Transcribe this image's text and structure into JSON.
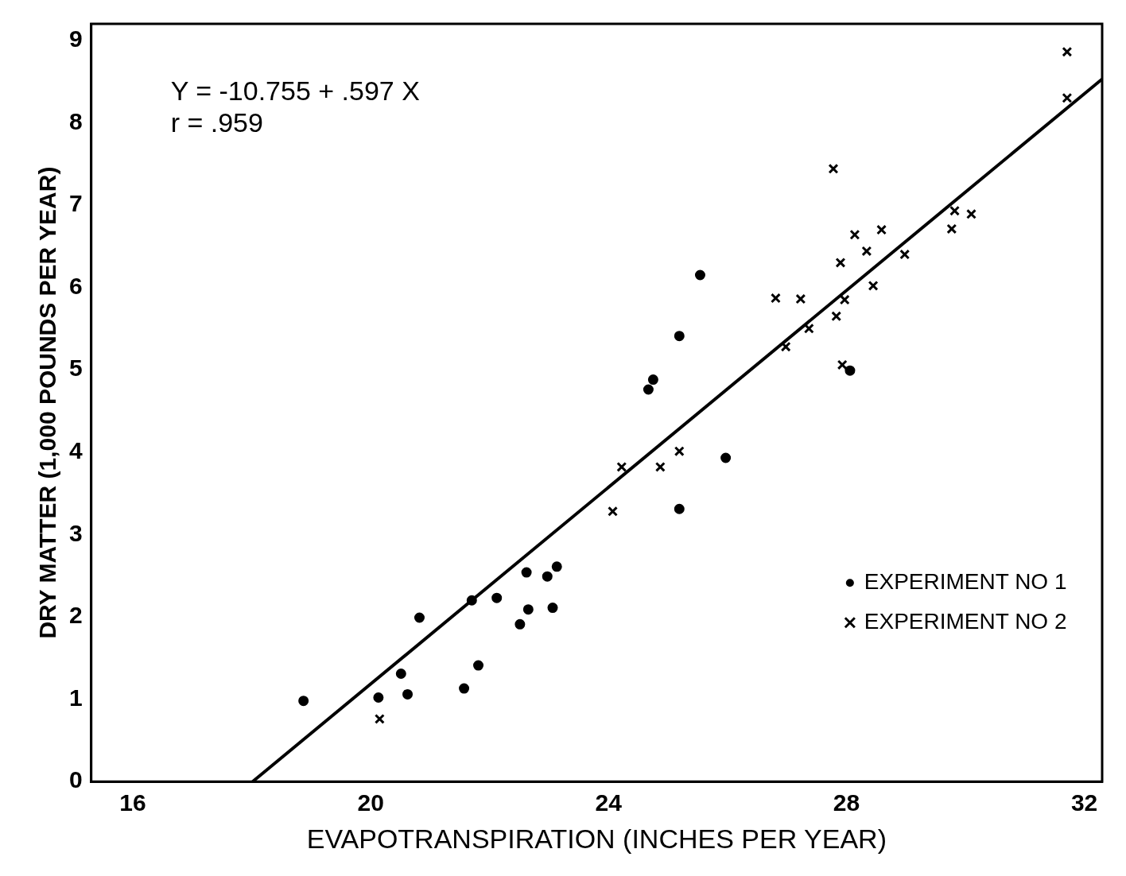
{
  "chart_data": {
    "type": "scatter",
    "xlabel": "EVAPOTRANSPIRATION (INCHES PER YEAR)",
    "ylabel": "DRY MATTER (1,000 POUNDS PER YEAR)",
    "annotations": [
      "Y = -10.755 + .597 X",
      "r = .959"
    ],
    "xlim": [
      15.3,
      32.3
    ],
    "ylim": [
      0,
      9.2
    ],
    "xticks": [
      16,
      20,
      24,
      28,
      32
    ],
    "yticks": [
      0,
      1,
      2,
      3,
      4,
      5,
      6,
      7,
      8,
      9
    ],
    "grid": false,
    "legend": "bottom right",
    "series": [
      {
        "name": "EXPERIMENT NO 1",
        "color": "#000000",
        "marker": "circle",
        "x": [
          18.87,
          20.13,
          20.62,
          20.51,
          20.82,
          21.57,
          21.81,
          21.7,
          22.12,
          22.51,
          22.65,
          22.62,
          22.97,
          23.06,
          23.13,
          24.67,
          24.75,
          25.19,
          25.19,
          25.54,
          25.97,
          28.06
        ],
        "values": [
          0.98,
          1.02,
          1.06,
          1.31,
          1.99,
          1.13,
          1.41,
          2.2,
          2.23,
          1.91,
          2.09,
          2.54,
          2.49,
          2.11,
          2.61,
          4.76,
          4.88,
          5.41,
          3.31,
          6.15,
          3.93,
          4.99
        ]
      },
      {
        "name": "EXPERIMENT NO 2",
        "color": "#000000",
        "marker": "cross",
        "x": [
          20.15,
          24.07,
          24.22,
          24.87,
          25.19,
          26.81,
          27.23,
          26.98,
          27.37,
          27.78,
          27.83,
          27.9,
          27.97,
          27.93,
          28.14,
          28.34,
          28.45,
          28.59,
          28.98,
          29.77,
          29.82,
          30.1,
          31.71,
          31.71
        ],
        "values": [
          0.76,
          3.28,
          3.82,
          3.82,
          4.01,
          5.87,
          5.86,
          5.28,
          5.5,
          7.44,
          5.65,
          6.3,
          5.85,
          5.06,
          6.64,
          6.44,
          6.02,
          6.7,
          6.4,
          6.71,
          6.93,
          6.89,
          8.86,
          8.3
        ]
      },
      {
        "type": "line",
        "color": "#000000",
        "marker": "none",
        "line_style": "solid",
        "x": [
          18.015,
          32.3
        ],
        "values": [
          0,
          8.53
        ]
      }
    ]
  }
}
